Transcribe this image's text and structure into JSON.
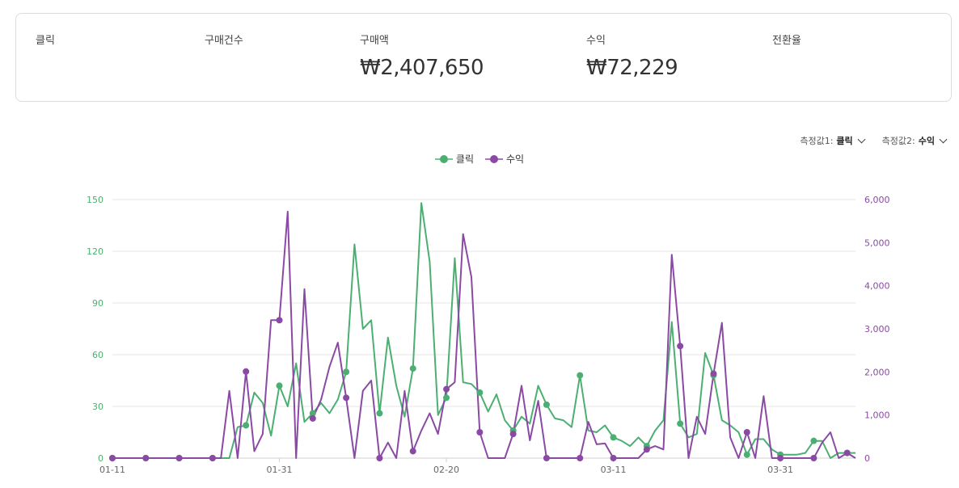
{
  "summary": {
    "metrics": [
      {
        "label": "클릭",
        "value": ""
      },
      {
        "label": "구매건수",
        "value": ""
      },
      {
        "label": "구매액",
        "value": "₩2,407,650"
      },
      {
        "label": "수익",
        "value": "₩72,229"
      },
      {
        "label": "전환율",
        "value": ""
      }
    ]
  },
  "selectors": {
    "measure1_label": "측정값1:",
    "measure1_value": "클릭",
    "measure2_label": "측정값2:",
    "measure2_value": "수익"
  },
  "colors": {
    "clicks": "#4caf72",
    "revenue": "#8a4aa3",
    "grid": "#e6e6e6"
  },
  "chart_data": {
    "type": "line",
    "title": "",
    "legend": [
      "클릭",
      "수익"
    ],
    "x_ticks": [
      {
        "label": "01-11",
        "index": 0
      },
      {
        "label": "01-31",
        "index": 20
      },
      {
        "label": "02-20",
        "index": 40
      },
      {
        "label": "03-11",
        "index": 60
      },
      {
        "label": "03-31",
        "index": 80
      }
    ],
    "y_left": {
      "label": "클릭",
      "range": [
        0,
        150
      ],
      "ticks": [
        0,
        30,
        60,
        90,
        120,
        150
      ]
    },
    "y_right": {
      "label": "수익",
      "range": [
        0,
        6000
      ],
      "ticks": [
        0,
        1000,
        2000,
        3000,
        4000,
        5000,
        6000
      ],
      "tick_labels": [
        "0",
        "1,000",
        "2,000",
        "3,000",
        "4,000",
        "5,000",
        "6,000"
      ]
    },
    "marker_every": 4,
    "series": [
      {
        "name": "클릭",
        "axis": "left",
        "values": [
          0,
          0,
          0,
          0,
          0,
          0,
          0,
          0,
          0,
          0,
          0,
          0,
          0,
          0,
          0,
          18,
          19,
          38,
          32,
          13,
          42,
          30,
          55,
          21,
          26,
          32,
          26,
          34,
          50,
          124,
          75,
          80,
          26,
          70,
          42,
          24,
          52,
          148,
          114,
          25,
          35,
          116,
          44,
          43,
          38,
          27,
          37,
          22,
          16,
          24,
          20,
          42,
          31,
          23,
          22,
          18,
          48,
          16,
          15,
          19,
          12,
          10,
          7,
          12,
          7,
          16,
          22,
          79,
          20,
          12,
          14,
          61,
          48,
          22,
          19,
          15,
          2,
          11,
          11,
          5,
          2,
          2,
          2,
          3,
          10,
          10,
          0,
          3,
          3,
          3
        ],
        "color": "#4caf72"
      },
      {
        "name": "수익",
        "axis": "right",
        "values": [
          0,
          0,
          0,
          0,
          0,
          0,
          0,
          0,
          0,
          0,
          0,
          0,
          0,
          0,
          1560,
          0,
          2010,
          160,
          560,
          3200,
          3200,
          5720,
          0,
          3920,
          920,
          1360,
          2120,
          2680,
          1400,
          0,
          1560,
          1800,
          0,
          360,
          0,
          1560,
          160,
          640,
          1040,
          560,
          1600,
          1760,
          5200,
          4200,
          600,
          0,
          0,
          0,
          560,
          1680,
          410,
          1330,
          0,
          0,
          0,
          0,
          0,
          840,
          320,
          340,
          0,
          0,
          0,
          0,
          200,
          280,
          200,
          4720,
          2600,
          0,
          960,
          560,
          1960,
          3140,
          480,
          0,
          600,
          0,
          1440,
          0,
          0,
          0,
          0,
          0,
          0,
          360,
          600,
          0,
          120,
          0
        ],
        "color": "#8a4aa3"
      }
    ]
  }
}
